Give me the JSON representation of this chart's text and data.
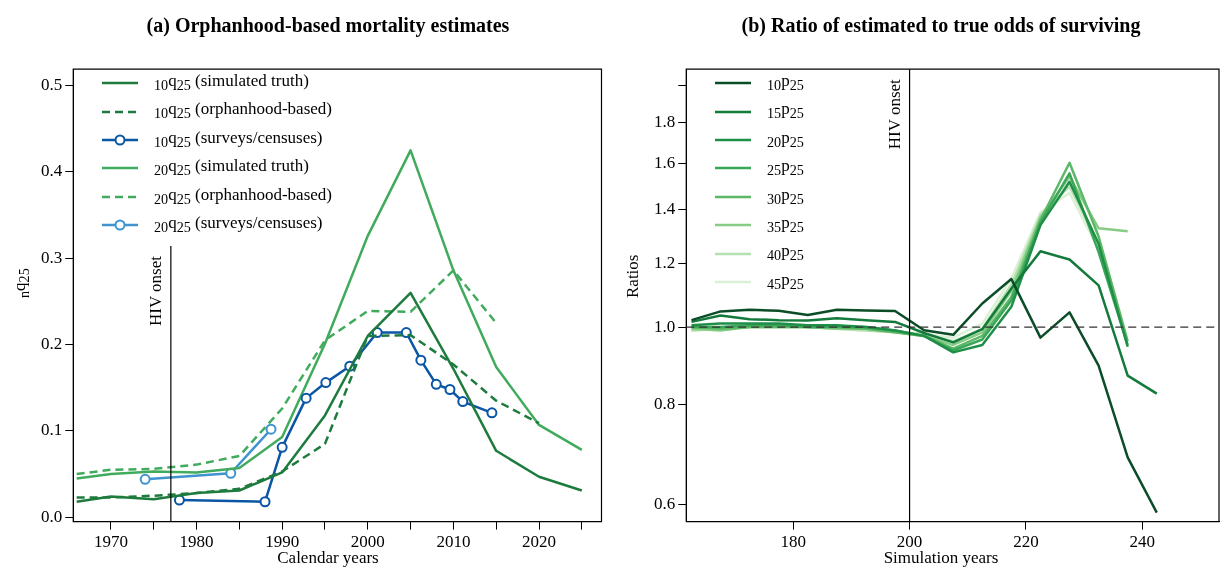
{
  "chart_data": [
    {
      "type": "line",
      "title": "(a) Orphanhood-based mortality estimates",
      "xlabel": "Calendar years",
      "ylabel": "$_{n}$q$_{25}$",
      "x": [
        1966,
        1970,
        1975,
        1980,
        1985,
        1990,
        1995,
        2000,
        2005,
        2010,
        2015,
        2020,
        2025
      ],
      "xlim": [
        1965.6,
        2027.3
      ],
      "ylim": [
        -0.005,
        0.519
      ],
      "xticks": [
        1970,
        {
          "value": 1975,
          "label": null
        },
        1980,
        {
          "value": 1985,
          "label": null
        },
        1990,
        {
          "value": 1995,
          "label": null
        },
        2000,
        {
          "value": 2005,
          "label": null
        },
        2010,
        {
          "value": 2015,
          "label": null
        },
        2020,
        {
          "value": 2025,
          "label": null
        }
      ],
      "yticks": [
        {
          "value": 0,
          "label": "0.0"
        },
        0.1,
        0.2,
        0.3,
        0.4,
        0.5
      ],
      "legend": "top left",
      "grid": false,
      "ref_lines": [
        {
          "axis": "x",
          "value": 1977,
          "label": "HIV onset",
          "color": "#000000"
        }
      ],
      "series": [
        {
          "name": "$_{10}$q$_{25}$ (simulated truth)",
          "color": "#1e7b3e",
          "line_style": "solid",
          "values": [
            0.018,
            0.024,
            0.021,
            0.028,
            0.031,
            0.052,
            0.118,
            0.21,
            0.26,
            0.172,
            0.077,
            0.047,
            0.031
          ]
        },
        {
          "name": "$_{10}$q$_{25}$ (orphanhood-based)",
          "color": "#1e7b3e",
          "line_style": "dashed",
          "values": [
            0.023,
            0.023,
            0.025,
            0.028,
            0.033,
            0.053,
            0.085,
            0.21,
            0.211,
            0.177,
            0.135,
            0.109,
            null
          ]
        },
        {
          "name": "$_{10}$q$_{25}$ (surveys/censuses)",
          "color": "#0a56a5",
          "line_style": "solid",
          "marker": "circle",
          "x": [
            1978,
            1988,
            1990,
            1992.8,
            1995.1,
            1997.9,
            2001.1,
            2004.5,
            2006.2,
            2008,
            2009.6,
            2011.1,
            2014.5
          ],
          "values": [
            0.02,
            0.018,
            0.081,
            0.138,
            0.156,
            0.175,
            0.214,
            0.214,
            0.182,
            0.154,
            0.148,
            0.134,
            0.121
          ]
        },
        {
          "name": "$_{20}$q$_{25}$ (simulated truth)",
          "color": "#41ab5d",
          "line_style": "solid",
          "values": [
            0.045,
            0.05,
            0.053,
            0.052,
            0.057,
            0.093,
            0.201,
            0.326,
            0.425,
            0.286,
            0.174,
            0.107,
            0.078
          ]
        },
        {
          "name": "$_{20}$q$_{25}$ (orphanhood-based)",
          "color": "#41ab5d",
          "line_style": "dashed",
          "values": [
            0.05,
            0.055,
            0.056,
            0.061,
            0.071,
            0.126,
            0.205,
            0.239,
            0.238,
            0.286,
            0.225,
            null,
            null
          ]
        },
        {
          "name": "$_{20}$q$_{25}$ (surveys/censuses)",
          "color": "#3f94d0",
          "line_style": "solid",
          "marker": "circle",
          "x": [
            1974,
            1984,
            1988.7
          ],
          "values": [
            0.044,
            0.051,
            0.102
          ]
        }
      ]
    },
    {
      "type": "line",
      "title": "(b) Ratio of estimated to true odds of surviving",
      "xlabel": "Simulation years",
      "ylabel": "Ratios",
      "x": [
        162.5,
        167.5,
        172.5,
        177.5,
        182.5,
        187.5,
        192.5,
        197.5,
        202.5,
        207.5,
        212.5,
        217.5,
        222.5,
        227.5,
        232.5,
        237.5,
        242.5
      ],
      "xlim": [
        161.6,
        253.2
      ],
      "ylim": [
        0.572,
        2.097
      ],
      "log": "y",
      "xticks": [
        180,
        200,
        220,
        240
      ],
      "yticks": [
        0.6,
        0.8,
        {
          "value": 1,
          "label": "1.0"
        },
        1.2,
        1.4,
        1.6,
        1.8,
        {
          "value": 2,
          "label": null
        }
      ],
      "legend": "top left",
      "grid": false,
      "ref_lines": [
        {
          "axis": "x",
          "value": 200,
          "label": "HIV onset",
          "color": "#000000"
        },
        {
          "axis": "y",
          "value": 1,
          "color": "#333333",
          "line_style": "dashed"
        }
      ],
      "series": [
        {
          "name": "$_{10}$p$_{25}$",
          "color": "#0b4d26",
          "values": [
            1.02,
            1.046,
            1.051,
            1.048,
            1.035,
            1.051,
            1.049,
            1.047,
            0.991,
            0.978,
            1.07,
            1.148,
            0.97,
            1.043,
            0.895,
            0.688,
            0.587
          ]
        },
        {
          "name": "$_{15}$p$_{25}$",
          "color": "#137a3b",
          "values": [
            1.015,
            1.034,
            1.023,
            1.02,
            1.019,
            1.026,
            1.02,
            1.015,
            0.983,
            0.957,
            0.994,
            1.117,
            1.243,
            1.214,
            1.127,
            0.87,
            0.826
          ]
        },
        {
          "name": "$_{20}$p$_{25}$",
          "color": "#1f8f48",
          "values": [
            1.005,
            1.01,
            1.01,
            1.01,
            1.005,
            1.005,
            1.0,
            0.99,
            0.975,
            0.93,
            0.95,
            1.06,
            1.34,
            1.518,
            1.27,
            0.945,
            null
          ]
        },
        {
          "name": "$_{25}$p$_{25}$",
          "color": "#3aa657",
          "values": [
            1.0,
            1.0,
            1.005,
            1.005,
            1.0,
            1.0,
            1.0,
            0.99,
            0.975,
            0.935,
            0.965,
            1.08,
            1.35,
            1.555,
            1.24,
            0.95,
            null
          ]
        },
        {
          "name": "$_{30}$p$_{25}$",
          "color": "#5cb866",
          "values": [
            1.0,
            0.995,
            1.0,
            1.0,
            1.0,
            1.0,
            0.995,
            0.985,
            0.975,
            0.94,
            0.975,
            1.09,
            1.36,
            1.603,
            1.297,
            0.96,
            null
          ]
        },
        {
          "name": "$_{35}$p$_{25}$",
          "color": "#86cc85",
          "values": [
            0.995,
            0.99,
            1.0,
            1.0,
            1.0,
            0.995,
            0.995,
            0.985,
            0.975,
            0.95,
            0.985,
            1.11,
            1.37,
            1.54,
            1.328,
            1.317,
            null
          ]
        },
        {
          "name": "$_{40}$p$_{25}$",
          "color": "#b5e0b0",
          "values": [
            0.99,
            0.995,
            1.0,
            1.0,
            1.0,
            0.995,
            0.99,
            0.985,
            0.98,
            0.96,
            0.995,
            1.13,
            1.38,
            1.498,
            1.27,
            null,
            null
          ]
        },
        {
          "name": "$_{45}$p$_{25}$",
          "color": "#dbf0d6",
          "values": [
            0.99,
            0.995,
            null,
            null,
            1.0,
            0.995,
            0.99,
            0.985,
            0.98,
            0.97,
            1.01,
            1.15,
            1.39,
            1.47,
            1.25,
            null,
            null
          ]
        }
      ]
    }
  ]
}
